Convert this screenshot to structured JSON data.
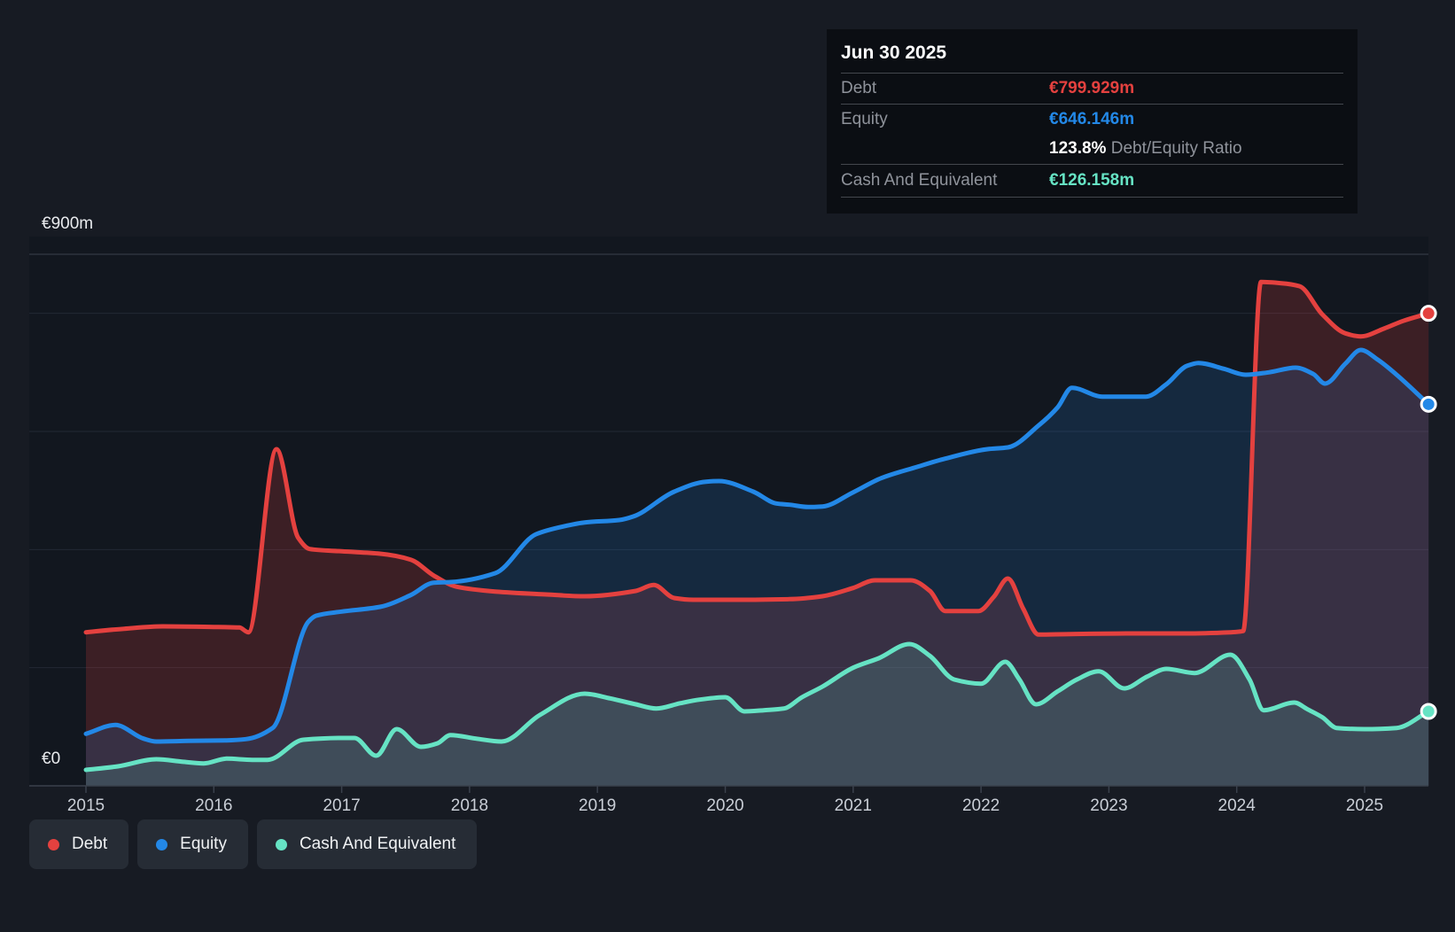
{
  "tooltip": {
    "date": "Jun 30 2025",
    "rows": [
      {
        "label": "Debt",
        "value": "€799.929m",
        "series": "debt"
      },
      {
        "label": "Equity",
        "value": "€646.146m",
        "series": "equity"
      },
      {
        "label": "Cash And Equivalent",
        "value": "€126.158m",
        "series": "cash"
      }
    ],
    "ratio_value": "123.8%",
    "ratio_label": "Debt/Equity Ratio"
  },
  "axes": {
    "y_top_label": "€900m",
    "y_zero_label": "€0",
    "x_ticks": [
      2015,
      2016,
      2017,
      2018,
      2019,
      2020,
      2021,
      2022,
      2023,
      2024,
      2025
    ]
  },
  "legend": {
    "items": [
      {
        "label": "Debt",
        "series": "debt"
      },
      {
        "label": "Equity",
        "series": "equity"
      },
      {
        "label": "Cash And Equivalent",
        "series": "cash"
      }
    ]
  },
  "colors": {
    "debt": "#e4413f",
    "equity": "#2388e7",
    "cash": "#66e3c4",
    "grid": "#232934",
    "grid_strong": "#3a414c",
    "tick_text": "#c9ced6",
    "plot_bg": "#12171f",
    "page_bg": "#171b23",
    "tooltip_bg": "#0b0e13"
  },
  "chart_data": {
    "type": "area",
    "title": "Debt to Equity History",
    "x_unit": "year",
    "x_range": [
      2015,
      2025.5
    ],
    "ylim": [
      0,
      900
    ],
    "y_gridline_values": [
      900,
      800,
      600,
      400,
      200
    ],
    "grid": true,
    "legend_position": "bottom-left",
    "series": [
      {
        "name": "Debt",
        "color_key": "debt",
        "end_value": 799.929,
        "points": [
          [
            2015.0,
            260
          ],
          [
            2015.3,
            266
          ],
          [
            2015.6,
            270
          ],
          [
            2016.0,
            269
          ],
          [
            2016.2,
            268
          ],
          [
            2016.27,
            260
          ],
          [
            2016.49,
            570
          ],
          [
            2016.66,
            420
          ],
          [
            2016.75,
            401
          ],
          [
            2017.0,
            397
          ],
          [
            2017.3,
            393
          ],
          [
            2017.54,
            383
          ],
          [
            2017.72,
            356
          ],
          [
            2017.9,
            337
          ],
          [
            2018.2,
            329
          ],
          [
            2018.6,
            324
          ],
          [
            2018.9,
            321
          ],
          [
            2019.3,
            330
          ],
          [
            2019.44,
            340
          ],
          [
            2019.6,
            318
          ],
          [
            2019.75,
            315
          ],
          [
            2020.1,
            315
          ],
          [
            2020.5,
            316
          ],
          [
            2020.76,
            321
          ],
          [
            2021.0,
            335
          ],
          [
            2021.17,
            348
          ],
          [
            2021.45,
            348
          ],
          [
            2021.6,
            330
          ],
          [
            2021.72,
            296
          ],
          [
            2021.98,
            296
          ],
          [
            2022.1,
            320
          ],
          [
            2022.21,
            351
          ],
          [
            2022.33,
            300
          ],
          [
            2022.45,
            256
          ],
          [
            2022.7,
            257
          ],
          [
            2023.2,
            258
          ],
          [
            2023.6,
            258
          ],
          [
            2023.95,
            260
          ],
          [
            2024.05,
            262
          ],
          [
            2024.19,
            853
          ],
          [
            2024.35,
            851
          ],
          [
            2024.49,
            846
          ],
          [
            2024.67,
            798
          ],
          [
            2024.85,
            766
          ],
          [
            2024.97,
            761
          ],
          [
            2025.15,
            774
          ],
          [
            2025.3,
            787
          ],
          [
            2025.5,
            800
          ]
        ]
      },
      {
        "name": "Equity",
        "color_key": "equity",
        "end_value": 646.146,
        "points": [
          [
            2015.0,
            88
          ],
          [
            2015.23,
            103
          ],
          [
            2015.45,
            80
          ],
          [
            2015.55,
            75
          ],
          [
            2015.8,
            76
          ],
          [
            2016.1,
            77
          ],
          [
            2016.25,
            79
          ],
          [
            2016.46,
            98
          ],
          [
            2016.74,
            278
          ],
          [
            2016.8,
            288
          ],
          [
            2017.0,
            295
          ],
          [
            2017.3,
            303
          ],
          [
            2017.54,
            323
          ],
          [
            2017.72,
            344
          ],
          [
            2017.85,
            345
          ],
          [
            2018.2,
            360
          ],
          [
            2018.52,
            426
          ],
          [
            2018.75,
            440
          ],
          [
            2018.9,
            446
          ],
          [
            2019.17,
            450
          ],
          [
            2019.28,
            456
          ],
          [
            2019.6,
            498
          ],
          [
            2019.85,
            515
          ],
          [
            2019.95,
            516
          ],
          [
            2020.22,
            498
          ],
          [
            2020.4,
            478
          ],
          [
            2020.5,
            476
          ],
          [
            2020.65,
            472
          ],
          [
            2020.76,
            473
          ],
          [
            2021.0,
            497
          ],
          [
            2021.22,
            521
          ],
          [
            2021.5,
            540
          ],
          [
            2021.72,
            554
          ],
          [
            2022.05,
            570
          ],
          [
            2022.21,
            573
          ],
          [
            2022.45,
            610
          ],
          [
            2022.6,
            641
          ],
          [
            2022.71,
            674
          ],
          [
            2022.95,
            659
          ],
          [
            2023.29,
            659
          ],
          [
            2023.45,
            680
          ],
          [
            2023.61,
            711
          ],
          [
            2023.7,
            716
          ],
          [
            2023.9,
            706
          ],
          [
            2024.07,
            696
          ],
          [
            2024.25,
            700
          ],
          [
            2024.46,
            708
          ],
          [
            2024.6,
            697
          ],
          [
            2024.69,
            681
          ],
          [
            2024.85,
            715
          ],
          [
            2024.97,
            738
          ],
          [
            2025.1,
            722
          ],
          [
            2025.25,
            696
          ],
          [
            2025.5,
            646
          ]
        ]
      },
      {
        "name": "Cash And Equivalent",
        "color_key": "cash",
        "end_value": 126.158,
        "points": [
          [
            2015.0,
            27
          ],
          [
            2015.25,
            33
          ],
          [
            2015.55,
            45
          ],
          [
            2015.75,
            41
          ],
          [
            2015.92,
            38
          ],
          [
            2016.1,
            46
          ],
          [
            2016.3,
            44
          ],
          [
            2016.42,
            44
          ],
          [
            2016.7,
            78
          ],
          [
            2017.0,
            81
          ],
          [
            2017.1,
            81
          ],
          [
            2017.27,
            51
          ],
          [
            2017.43,
            96
          ],
          [
            2017.62,
            66
          ],
          [
            2017.75,
            72
          ],
          [
            2017.85,
            86
          ],
          [
            2018.05,
            80
          ],
          [
            2018.25,
            75
          ],
          [
            2018.55,
            120
          ],
          [
            2018.9,
            156
          ],
          [
            2019.1,
            148
          ],
          [
            2019.3,
            138
          ],
          [
            2019.46,
            131
          ],
          [
            2019.65,
            140
          ],
          [
            2019.8,
            146
          ],
          [
            2020.0,
            150
          ],
          [
            2020.15,
            126
          ],
          [
            2020.3,
            128
          ],
          [
            2020.46,
            131
          ],
          [
            2020.6,
            150
          ],
          [
            2020.76,
            168
          ],
          [
            2021.0,
            200
          ],
          [
            2021.2,
            216
          ],
          [
            2021.44,
            240
          ],
          [
            2021.6,
            220
          ],
          [
            2021.79,
            180
          ],
          [
            2022.0,
            173
          ],
          [
            2022.19,
            210
          ],
          [
            2022.3,
            180
          ],
          [
            2022.43,
            138
          ],
          [
            2022.6,
            160
          ],
          [
            2022.75,
            180
          ],
          [
            2022.92,
            194
          ],
          [
            2023.12,
            165
          ],
          [
            2023.3,
            185
          ],
          [
            2023.45,
            198
          ],
          [
            2023.67,
            191
          ],
          [
            2023.95,
            222
          ],
          [
            2024.1,
            180
          ],
          [
            2024.21,
            128
          ],
          [
            2024.45,
            141
          ],
          [
            2024.55,
            130
          ],
          [
            2024.67,
            116
          ],
          [
            2024.78,
            98
          ],
          [
            2025.0,
            96
          ],
          [
            2025.25,
            98
          ],
          [
            2025.5,
            126
          ]
        ]
      }
    ]
  }
}
